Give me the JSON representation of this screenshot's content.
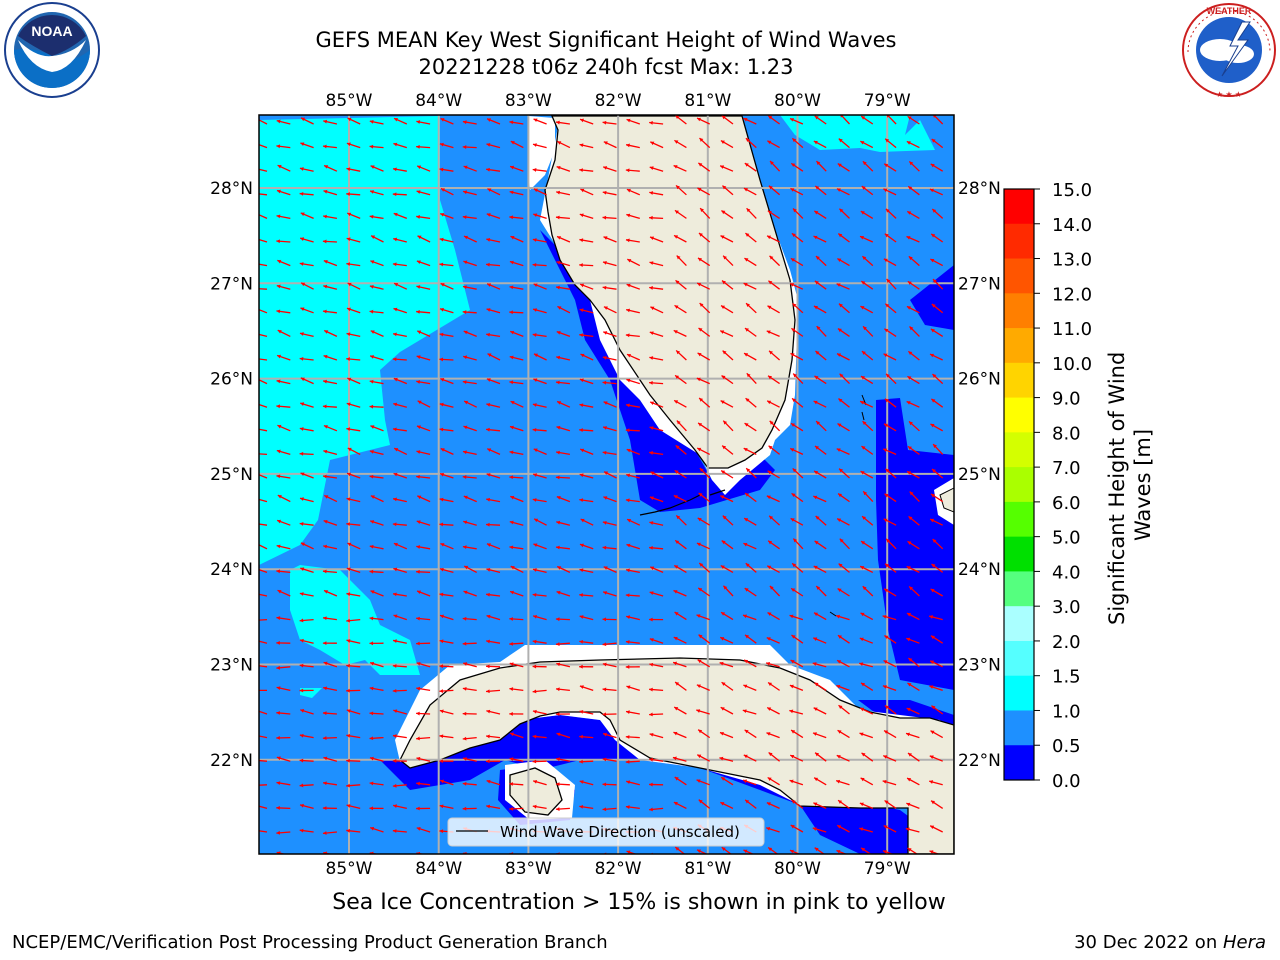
{
  "title": {
    "line1": "GEFS MEAN Key West Significant Height of Wind Waves",
    "line2": "20221228 t06z 240h fcst   Max: 1.23"
  },
  "lon_labels": [
    "85°W",
    "84°W",
    "83°W",
    "82°W",
    "81°W",
    "80°W",
    "79°W"
  ],
  "lat_labels": [
    "28°N",
    "27°N",
    "26°N",
    "25°N",
    "24°N",
    "23°N",
    "22°N"
  ],
  "colorbar": {
    "label": "Significant Height of Wind Waves [m]",
    "ticks": [
      "15.0",
      "14.0",
      "13.0",
      "12.0",
      "11.0",
      "10.0",
      "9.0",
      "8.0",
      "7.0",
      "6.0",
      "5.0",
      "4.0",
      "3.0",
      "2.0",
      "1.5",
      "1.0",
      "0.5",
      "0.0"
    ],
    "colors": [
      "#ff0000",
      "#ff2a00",
      "#ff5500",
      "#ff7f00",
      "#ffaa00",
      "#ffd400",
      "#ffff00",
      "#d4ff00",
      "#aaff00",
      "#55ff00",
      "#00e000",
      "#55ff7f",
      "#aaffff",
      "#55ffff",
      "#00ffff",
      "#1e90ff",
      "#0000ff"
    ]
  },
  "legend": {
    "text": "Wind Wave Direction (unscaled)"
  },
  "sea_ice_note": "Sea Ice Concentration > 15% is shown in pink to yellow",
  "footer": {
    "left": "NCEP/EMC/Verification Post Processing Product Generation Branch",
    "right_prefix": "30 Dec 2022 on ",
    "right_italic": "Hera"
  },
  "logos": {
    "left": "NOAA",
    "right": "NATIONAL WEATHER SERVICE"
  },
  "map_data": {
    "lon_range": [
      -86.0,
      -78.3
    ],
    "lat_range": [
      21.0,
      28.75
    ],
    "wave_height_max": 1.23,
    "colors": {
      "land": "#eeecdc",
      "cyan": "#00ffff",
      "mid_blue": "#1e90ff",
      "deep_blue": "#0000ff",
      "arrow": "#ff0000",
      "grid": "#b0b0b0"
    }
  }
}
